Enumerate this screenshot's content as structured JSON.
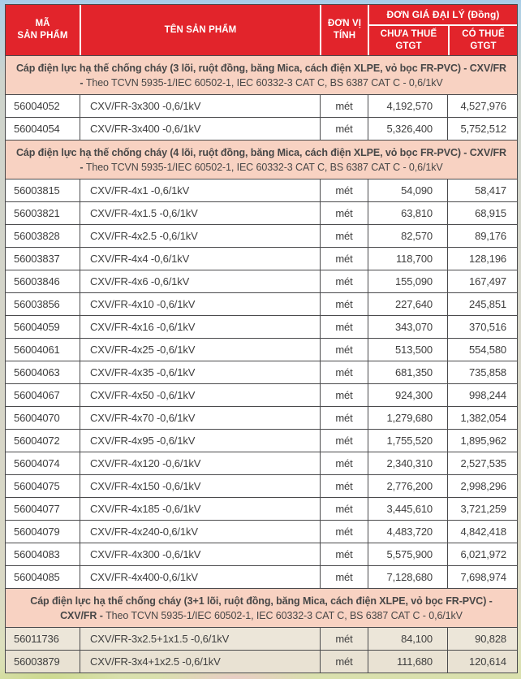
{
  "colors": {
    "header_bg": "#e2242b",
    "header_text": "#ffffff",
    "section_bg": "#f8d2c2",
    "section_text": "#474747",
    "border": "#4b4b4d",
    "text": "#3e3e3e",
    "row_bg": "#ffffff",
    "tint_bg": "#ece6d9",
    "photo_edge_top": "#a7cce8",
    "photo_edge_bottom": "#d9e0ac"
  },
  "table": {
    "columns": {
      "code": "MÃ\nSẢN PHẨM",
      "name": "TÊN SẢN PHẨM",
      "unit": "ĐƠN VỊ\nTÍNH",
      "price_group": "ĐƠN GIÁ ĐẠI LÝ (Đồng)",
      "price_ex": "CHƯA THUẾ\nGTGT",
      "price_inc": "CÓ THUẾ\nGTGT"
    },
    "sections": [
      {
        "title_bold": "Cáp điện lực hạ thế chống cháy (3 lõi, ruột đồng, băng Mica, cách điện XLPE, vỏ bọc FR-PVC) - CXV/FR -",
        "title_note": "Theo TCVN 5935-1/IEC 60502-1, IEC 60332-3 CAT C, BS 6387 CAT C - 0,6/1kV",
        "tinted": false,
        "rows": [
          {
            "code": "56004052",
            "name": "CXV/FR-3x300 -0,6/1kV",
            "unit": "mét",
            "ex": "4,192,570",
            "inc": "4,527,976"
          },
          {
            "code": "56004054",
            "name": "CXV/FR-3x400 -0,6/1kV",
            "unit": "mét",
            "ex": "5,326,400",
            "inc": "5,752,512"
          }
        ]
      },
      {
        "title_bold": "Cáp điện lực hạ thế chống cháy (4 lõi, ruột đồng, băng Mica, cách điện XLPE, vỏ bọc FR-PVC) - CXV/FR -",
        "title_note": "Theo TCVN 5935-1/IEC 60502-1, IEC 60332-3 CAT C, BS 6387 CAT C - 0,6/1kV",
        "tinted": false,
        "rows": [
          {
            "code": "56003815",
            "name": "CXV/FR-4x1 -0,6/1kV",
            "unit": "mét",
            "ex": "54,090",
            "inc": "58,417"
          },
          {
            "code": "56003821",
            "name": "CXV/FR-4x1.5 -0,6/1kV",
            "unit": "mét",
            "ex": "63,810",
            "inc": "68,915"
          },
          {
            "code": "56003828",
            "name": "CXV/FR-4x2.5 -0,6/1kV",
            "unit": "mét",
            "ex": "82,570",
            "inc": "89,176"
          },
          {
            "code": "56003837",
            "name": "CXV/FR-4x4 -0,6/1kV",
            "unit": "mét",
            "ex": "118,700",
            "inc": "128,196"
          },
          {
            "code": "56003846",
            "name": "CXV/FR-4x6 -0,6/1kV",
            "unit": "mét",
            "ex": "155,090",
            "inc": "167,497"
          },
          {
            "code": "56003856",
            "name": "CXV/FR-4x10 -0,6/1kV",
            "unit": "mét",
            "ex": "227,640",
            "inc": "245,851"
          },
          {
            "code": "56004059",
            "name": "CXV/FR-4x16 -0,6/1kV",
            "unit": "mét",
            "ex": "343,070",
            "inc": "370,516"
          },
          {
            "code": "56004061",
            "name": "CXV/FR-4x25 -0,6/1kV",
            "unit": "mét",
            "ex": "513,500",
            "inc": "554,580"
          },
          {
            "code": "56004063",
            "name": "CXV/FR-4x35 -0,6/1kV",
            "unit": "mét",
            "ex": "681,350",
            "inc": "735,858"
          },
          {
            "code": "56004067",
            "name": "CXV/FR-4x50 -0,6/1kV",
            "unit": "mét",
            "ex": "924,300",
            "inc": "998,244"
          },
          {
            "code": "56004070",
            "name": "CXV/FR-4x70 -0,6/1kV",
            "unit": "mét",
            "ex": "1,279,680",
            "inc": "1,382,054"
          },
          {
            "code": "56004072",
            "name": "CXV/FR-4x95 -0,6/1kV",
            "unit": "mét",
            "ex": "1,755,520",
            "inc": "1,895,962"
          },
          {
            "code": "56004074",
            "name": "CXV/FR-4x120 -0,6/1kV",
            "unit": "mét",
            "ex": "2,340,310",
            "inc": "2,527,535"
          },
          {
            "code": "56004075",
            "name": "CXV/FR-4x150 -0,6/1kV",
            "unit": "mét",
            "ex": "2,776,200",
            "inc": "2,998,296"
          },
          {
            "code": "56004077",
            "name": "CXV/FR-4x185 -0,6/1kV",
            "unit": "mét",
            "ex": "3,445,610",
            "inc": "3,721,259"
          },
          {
            "code": "56004079",
            "name": "CXV/FR-4x240-0,6/1kV",
            "unit": "mét",
            "ex": "4,483,720",
            "inc": "4,842,418"
          },
          {
            "code": "56004083",
            "name": "CXV/FR-4x300 -0,6/1kV",
            "unit": "mét",
            "ex": "5,575,900",
            "inc": "6,021,972"
          },
          {
            "code": "56004085",
            "name": "CXV/FR-4x400-0,6/1kV",
            "unit": "mét",
            "ex": "7,128,680",
            "inc": "7,698,974"
          }
        ]
      },
      {
        "title_bold": "Cáp điện lực hạ thế chống cháy (3+1 lõi, ruột đồng, băng Mica, cách điện XLPE, vỏ bọc FR-PVC) - CXV/FR -",
        "title_note": "Theo TCVN 5935-1/IEC 60502-1, IEC 60332-3 CAT C, BS 6387 CAT C - 0,6/1kV",
        "tinted": true,
        "rows": [
          {
            "code": "56011736",
            "name": "CXV/FR-3x2.5+1x1.5 -0,6/1kV",
            "unit": "mét",
            "ex": "84,100",
            "inc": "90,828"
          },
          {
            "code": "56003879",
            "name": "CXV/FR-3x4+1x2.5 -0,6/1kV",
            "unit": "mét",
            "ex": "111,680",
            "inc": "120,614"
          }
        ]
      }
    ]
  }
}
